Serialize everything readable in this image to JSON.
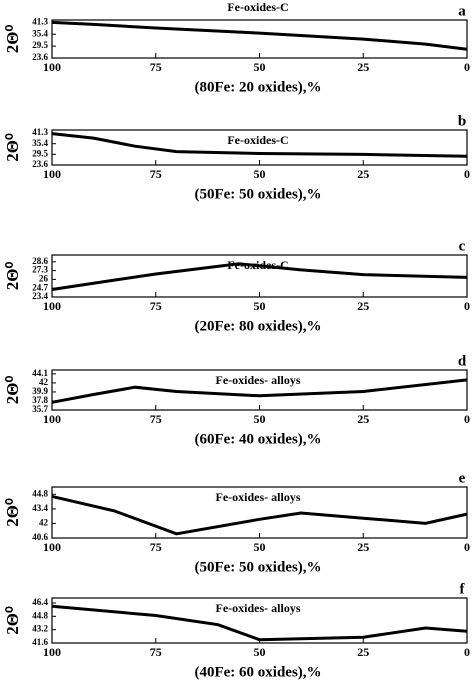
{
  "chart_data": [
    {
      "type": "line",
      "title": "Fe-oxides-C",
      "label": "a",
      "xlabel": "(80Fe: 20 oxides),%",
      "ylabel": "2Θ⁰",
      "x": [
        100,
        90,
        75,
        50,
        25,
        10,
        0
      ],
      "values": [
        41.3,
        40.3,
        38.5,
        36,
        33,
        30.5,
        28
      ],
      "xlim": [
        100,
        0
      ],
      "xticks": [
        100,
        75,
        50,
        25,
        0
      ],
      "ylim": [
        23.6,
        42.5
      ],
      "yticks": [
        41.3,
        35.4,
        29.5,
        23.6
      ],
      "color": "#000000"
    },
    {
      "type": "line",
      "title": "Fe-oxides-C",
      "label": "b",
      "xlabel": "(50Fe: 50 oxides),%",
      "ylabel": "2Θ⁰",
      "x": [
        100,
        90,
        80,
        70,
        50,
        25,
        0
      ],
      "values": [
        41,
        38.5,
        34,
        31,
        30,
        29.5,
        28.5
      ],
      "xlim": [
        100,
        0
      ],
      "xticks": [
        100,
        75,
        50,
        25,
        0
      ],
      "ylim": [
        23.6,
        43
      ],
      "yticks": [
        41.3,
        35.4,
        29.5,
        23.6
      ],
      "color": "#000000"
    },
    {
      "type": "line",
      "title": "Fe-oxides-C",
      "label": "c",
      "xlabel": "(20Fe: 80 oxides),%",
      "ylabel": "2Θ⁰",
      "x": [
        100,
        85,
        75,
        55,
        40,
        25,
        0
      ],
      "values": [
        24.5,
        25.9,
        26.8,
        28.3,
        27.4,
        26.7,
        26.3
      ],
      "xlim": [
        100,
        0
      ],
      "xticks": [
        100,
        75,
        50,
        25,
        0
      ],
      "ylim": [
        23.4,
        29.6
      ],
      "yticks": [
        28.6,
        27.3,
        26.0,
        24.7,
        23.4
      ],
      "color": "#000000"
    },
    {
      "type": "line",
      "title": "Fe-oxides- alloys",
      "label": "d",
      "xlabel": "(60Fe: 40 oxides),%",
      "ylabel": "2Θ⁰",
      "x": [
        100,
        90,
        80,
        70,
        50,
        25,
        0
      ],
      "values": [
        37.5,
        39.3,
        41,
        40,
        39,
        40,
        42.7
      ],
      "xlim": [
        100,
        0
      ],
      "xticks": [
        100,
        75,
        50,
        25,
        0
      ],
      "ylim": [
        35.7,
        45
      ],
      "yticks": [
        44.1,
        42.0,
        39.9,
        37.8,
        35.7
      ],
      "color": "#000000"
    },
    {
      "type": "line",
      "title": "Fe-oxides- alloys",
      "label": "e",
      "xlabel": "(50Fe: 50 oxides),%",
      "ylabel": "2Θ⁰",
      "x": [
        100,
        85,
        70,
        50,
        40,
        25,
        10,
        0
      ],
      "values": [
        44.6,
        43.2,
        41,
        42.4,
        43,
        42.5,
        42,
        42.9
      ],
      "xlim": [
        100,
        0
      ],
      "xticks": [
        100,
        75,
        50,
        25,
        0
      ],
      "ylim": [
        40.6,
        45.5
      ],
      "yticks": [
        44.8,
        43.4,
        42.0,
        40.6
      ],
      "color": "#000000"
    },
    {
      "type": "line",
      "title": "Fe-oxides- alloys",
      "label": "f",
      "xlabel": "(40Fe: 60 oxides),%",
      "ylabel": "2Θ⁰",
      "x": [
        100,
        75,
        60,
        50,
        25,
        10,
        0
      ],
      "values": [
        46.0,
        44.9,
        43.8,
        42,
        42.3,
        43.4,
        43
      ],
      "xlim": [
        100,
        0
      ],
      "xticks": [
        100,
        75,
        50,
        25,
        0
      ],
      "ylim": [
        41.6,
        47
      ],
      "yticks": [
        46.4,
        44.8,
        43.2,
        41.6
      ],
      "color": "#000000"
    }
  ]
}
